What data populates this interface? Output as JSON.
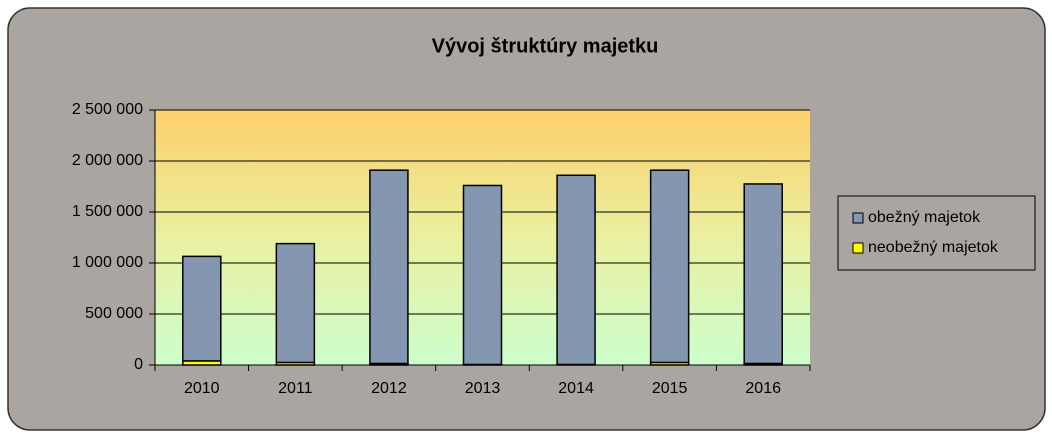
{
  "chart_data": {
    "type": "stacked_bar",
    "title": "Vývoj štruktúry majetku",
    "categories": [
      "2010",
      "2011",
      "2012",
      "2013",
      "2014",
      "2015",
      "2016"
    ],
    "series": [
      {
        "name": "obežný majetok",
        "color": "#8496b0",
        "values": [
          1025000,
          1165000,
          1895000,
          1755000,
          1855000,
          1885000,
          1760000
        ]
      },
      {
        "name": "neobežný majetok",
        "color": "#ffff00",
        "values": [
          40000,
          25000,
          15000,
          5000,
          5000,
          25000,
          15000
        ]
      }
    ],
    "ylim": [
      0,
      2500000
    ],
    "yticks": [
      0,
      {
        "value": 500000,
        "label": "500 000"
      },
      {
        "value": 1000000,
        "label": "1 000 000"
      },
      {
        "value": 1500000,
        "label": "1 500 000"
      },
      {
        "value": 2000000,
        "label": "2 000 000"
      },
      {
        "value": 2500000,
        "label": "2 500 000"
      }
    ],
    "grid": true,
    "legend": "right"
  }
}
